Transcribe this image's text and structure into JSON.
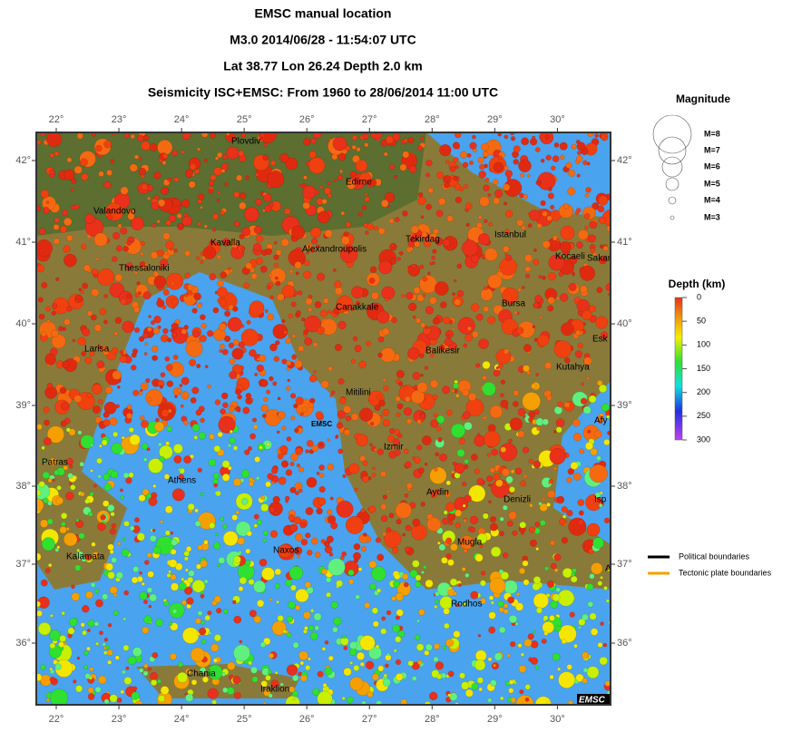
{
  "header": {
    "lines": [
      "EMSC manual location",
      "M3.0  2014/06/28 - 11:54:07 UTC",
      "Lat 38.77    Lon  26.24     Depth  2.0 km",
      "Seismicity ISC+EMSC: From 1960 to 28/06/2014 11:00 UTC"
    ]
  },
  "map": {
    "lon_ticks": [
      "22°",
      "23°",
      "24°",
      "25°",
      "26°",
      "27°",
      "28°",
      "29°",
      "30°"
    ],
    "lat_ticks": [
      "42°",
      "41°",
      "40°",
      "39°",
      "38°",
      "37°",
      "36°"
    ],
    "cities": [
      "Plovdiv",
      "Edirne",
      "Valandovo",
      "Kavalla",
      "Alexandroupolis",
      "Tekirdag",
      "Istanbul",
      "Kocaeli",
      "Sakar",
      "Thessaloniki",
      "Canakkale",
      "Bursa",
      "Esk",
      "Larisa",
      "Balikesir",
      "Kutahya",
      "Mitilini",
      "Afy",
      "Izmir",
      "Patras",
      "Athens",
      "Aydin",
      "Denizli",
      "Isp",
      "Mugla",
      "Naxos",
      "Kalamata",
      "A",
      "Rodhos",
      "Chania",
      "Iraklion"
    ],
    "epicenter_label": "EMSC",
    "watermark": "EMSC"
  },
  "magnitude_legend": {
    "title": "Magnitude",
    "labels": [
      "M=8",
      "M=7",
      "M=6",
      "M=5",
      "M=4",
      "M=3"
    ]
  },
  "depth_legend": {
    "title": "Depth (km)",
    "ticks": [
      0,
      50,
      100,
      150,
      200,
      250,
      300
    ]
  },
  "boundary_legend": {
    "political": "Political boundaries",
    "tectonic": "Tectonic plate boundaries"
  }
}
